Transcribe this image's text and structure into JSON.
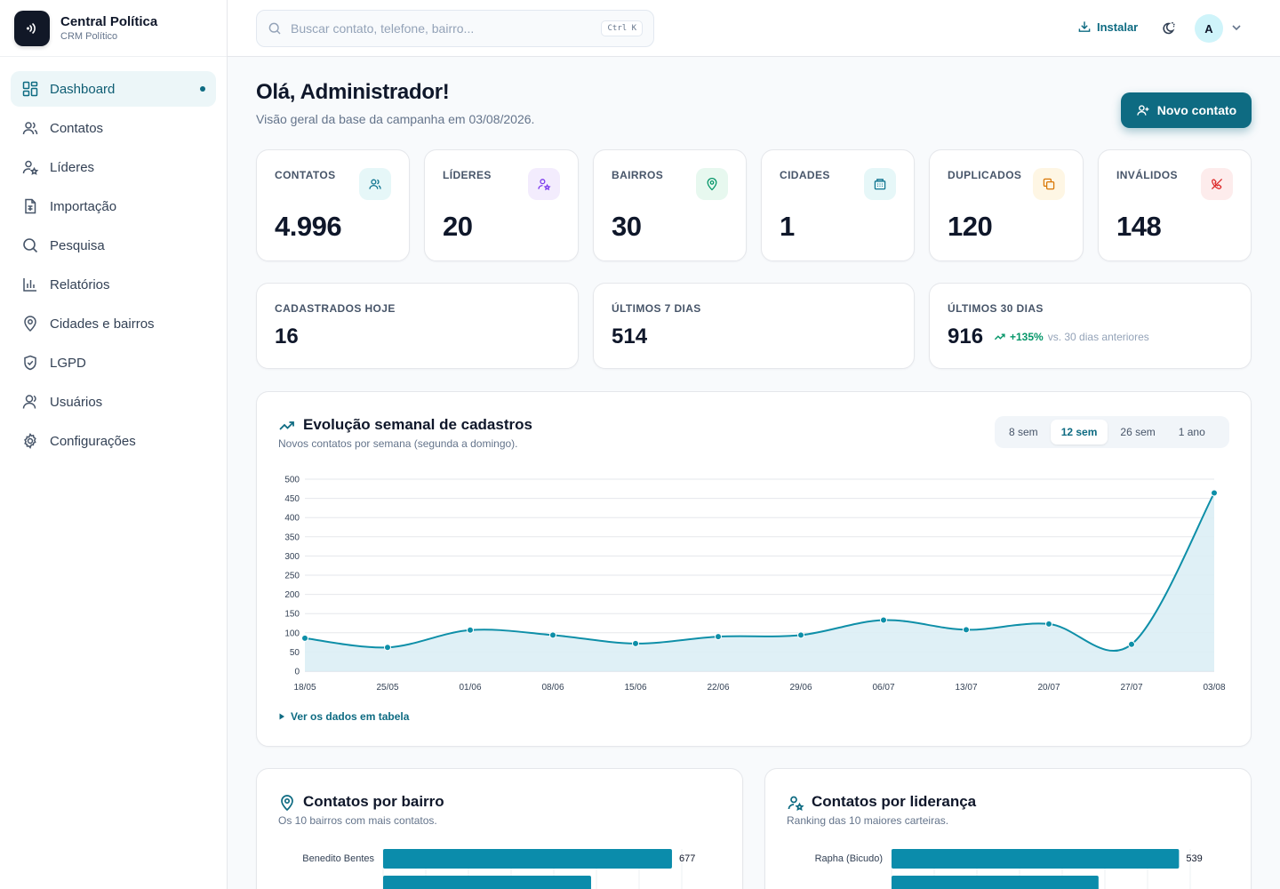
{
  "brand": {
    "title": "Central Política",
    "subtitle": "CRM Político"
  },
  "sidebar": {
    "items": [
      {
        "label": "Dashboard",
        "icon": "dashboard-icon",
        "active": true
      },
      {
        "label": "Contatos",
        "icon": "users-icon"
      },
      {
        "label": "Líderes",
        "icon": "user-star-icon"
      },
      {
        "label": "Importação",
        "icon": "file-spreadsheet-icon"
      },
      {
        "label": "Pesquisa",
        "icon": "search-icon"
      },
      {
        "label": "Relatórios",
        "icon": "bar-chart-icon"
      },
      {
        "label": "Cidades e bairros",
        "icon": "map-pin-icon"
      },
      {
        "label": "LGPD",
        "icon": "shield-check-icon"
      },
      {
        "label": "Usuários",
        "icon": "users-icon"
      },
      {
        "label": "Configurações",
        "icon": "gear-icon"
      }
    ]
  },
  "header": {
    "search_placeholder": "Buscar contato, telefone, bairro...",
    "search_shortcut": "Ctrl K",
    "install_label": "Instalar",
    "avatar_initial": "A"
  },
  "greeting": {
    "title": "Olá, Administrador!",
    "subtitle": "Visão geral da base da campanha em 03/08/2026.",
    "new_contact_label": "Novo contato"
  },
  "stats": [
    {
      "label": "CONTATOS",
      "value": "4.996",
      "icon": "users-icon",
      "bg": "#e6f7f8",
      "fg": "#0e7490"
    },
    {
      "label": "LÍDERES",
      "value": "20",
      "icon": "user-star-icon",
      "bg": "#f3ecfd",
      "fg": "#7c3aed"
    },
    {
      "label": "BAIRROS",
      "value": "30",
      "icon": "map-pin-icon",
      "bg": "#e7f8ef",
      "fg": "#059669"
    },
    {
      "label": "CIDADES",
      "value": "1",
      "icon": "building-icon",
      "bg": "#e6f7f8",
      "fg": "#0e7490"
    },
    {
      "label": "DUPLICADOS",
      "value": "120",
      "icon": "copy-icon",
      "bg": "#fef6e4",
      "fg": "#d97706"
    },
    {
      "label": "INVÁLIDOS",
      "value": "148",
      "icon": "phone-off-icon",
      "bg": "#fdecec",
      "fg": "#dc2626"
    }
  ],
  "periods": [
    {
      "label": "CADASTRADOS HOJE",
      "value": "16"
    },
    {
      "label": "ÚLTIMOS 7 DIAS",
      "value": "514"
    },
    {
      "label": "ÚLTIMOS 30 DIAS",
      "value": "916",
      "trend_pct": "+135%",
      "trend_text": "vs. 30 dias anteriores"
    }
  ],
  "weekly": {
    "title": "Evolução semanal de cadastros",
    "subtitle": "Novos contatos por semana (segunda a domingo).",
    "ranges": [
      "8 sem",
      "12 sem",
      "26 sem",
      "1 ano"
    ],
    "active_range": "12 sem",
    "table_toggle": "Ver os dados em tabela"
  },
  "neighborhoods": {
    "title": "Contatos por bairro",
    "subtitle": "Os 10 bairros com mais contatos."
  },
  "leaders": {
    "title": "Contatos por liderança",
    "subtitle": "Ranking das 10 maiores carteiras."
  },
  "colors": {
    "accent": "#0e6b82",
    "line": "#0e8fa8",
    "area": "#dbeef5",
    "bar": "#0b8cab"
  },
  "chart_data": [
    {
      "type": "area",
      "x": [
        "18/05",
        "25/05",
        "01/06",
        "08/06",
        "15/06",
        "22/06",
        "29/06",
        "06/07",
        "13/07",
        "20/07",
        "27/07",
        "03/08"
      ],
      "series": [
        {
          "values": [
            86,
            62,
            107,
            94,
            72,
            90,
            94,
            133,
            108,
            123,
            70,
            464
          ]
        }
      ],
      "ylim": [
        0,
        500
      ],
      "yticks": [
        0,
        50,
        100,
        150,
        200,
        250,
        300,
        350,
        400,
        450,
        500
      ],
      "grid": true
    },
    {
      "type": "bar",
      "orientation": "horizontal",
      "categories": [
        "Benedito Bentes"
      ],
      "values": [
        677
      ]
    },
    {
      "type": "bar",
      "orientation": "horizontal",
      "categories": [
        "Rapha (Bicudo)"
      ],
      "values": [
        539
      ]
    }
  ]
}
